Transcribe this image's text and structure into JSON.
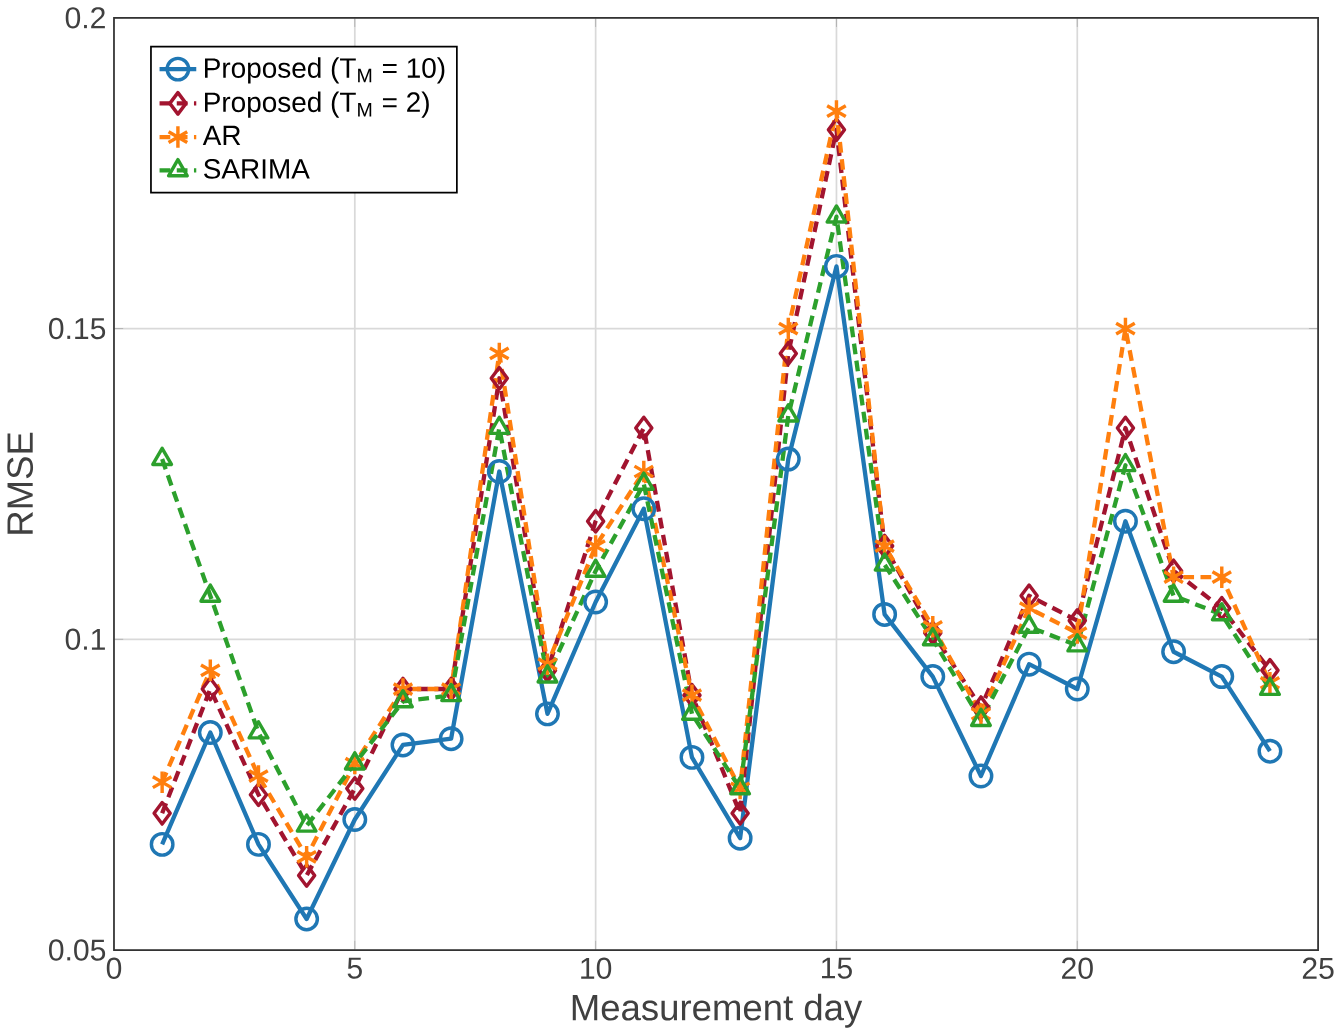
{
  "chart_data": {
    "type": "line",
    "xlabel": "Measurement day",
    "ylabel": "RMSE",
    "x": [
      1,
      2,
      3,
      4,
      5,
      6,
      7,
      8,
      9,
      10,
      11,
      12,
      13,
      14,
      15,
      16,
      17,
      18,
      19,
      20,
      21,
      22,
      23,
      24
    ],
    "xlim": [
      0,
      25
    ],
    "xticks": [
      0,
      5,
      10,
      15,
      20,
      25
    ],
    "ylim": [
      0.05,
      0.2
    ],
    "yticks": [
      0.05,
      0.1,
      0.15,
      0.2
    ],
    "grid": true,
    "legend": "top left",
    "series": [
      {
        "name": "Proposed (T$_{M}$ = 10)",
        "color": "#1f77b4",
        "marker": "circle",
        "line_style": "solid",
        "values": [
          0.067,
          0.085,
          0.067,
          0.055,
          0.071,
          0.083,
          0.084,
          0.127,
          0.088,
          0.106,
          0.121,
          0.081,
          0.068,
          0.129,
          0.16,
          0.104,
          0.094,
          0.078,
          0.096,
          0.092,
          0.119,
          0.098,
          0.094,
          0.082
        ]
      },
      {
        "name": "Proposed (T$_{M}$ = 2)",
        "color": "#a2142f",
        "marker": "diamond",
        "line_style": "dashed",
        "values": [
          0.072,
          0.092,
          0.075,
          0.062,
          0.076,
          0.092,
          0.092,
          0.142,
          0.095,
          0.119,
          0.134,
          0.091,
          0.072,
          0.146,
          0.182,
          0.115,
          0.101,
          0.089,
          0.107,
          0.103,
          0.134,
          0.111,
          0.105,
          0.095
        ]
      },
      {
        "name": "AR",
        "color": "#ff7f0e",
        "marker": "cross",
        "line_style": "dashed",
        "values": [
          0.077,
          0.095,
          0.078,
          0.065,
          0.08,
          0.092,
          0.092,
          0.146,
          0.096,
          0.115,
          0.127,
          0.091,
          0.076,
          0.15,
          0.185,
          0.115,
          0.102,
          0.088,
          0.105,
          0.101,
          0.15,
          0.11,
          0.11,
          0.093
        ]
      },
      {
        "name": "SARIMA",
        "color": "#2ca02c",
        "marker": "triangle",
        "line_style": "dashed",
        "values": [
          0.129,
          0.107,
          0.085,
          0.07,
          0.08,
          0.09,
          0.091,
          0.134,
          0.094,
          0.111,
          0.125,
          0.088,
          0.076,
          0.136,
          0.168,
          0.112,
          0.1,
          0.087,
          0.102,
          0.099,
          0.128,
          0.107,
          0.104,
          0.092
        ]
      }
    ]
  }
}
